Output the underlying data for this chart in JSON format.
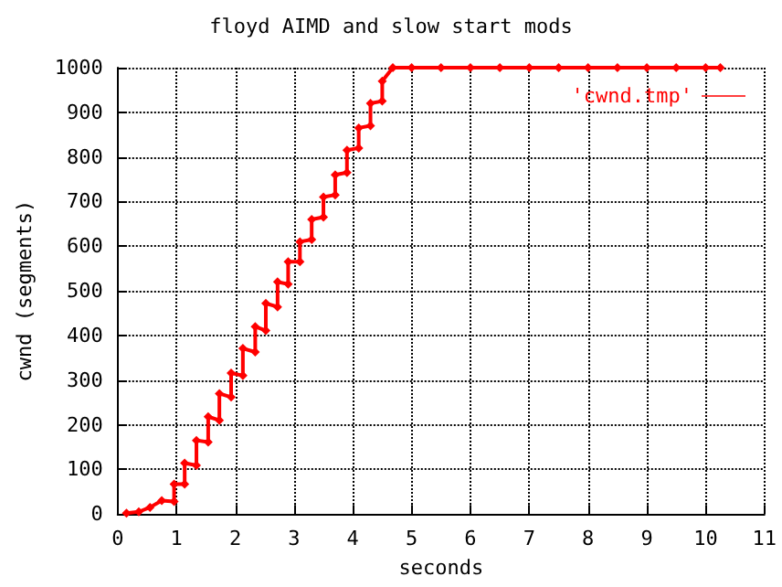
{
  "chart_data": {
    "type": "line",
    "title": "floyd AIMD and slow start mods",
    "xlabel": "seconds",
    "ylabel": "cwnd (segments)",
    "x": [
      0.15,
      0.36,
      0.55,
      0.75,
      0.96,
      0.96,
      1.14,
      1.14,
      1.34,
      1.34,
      1.54,
      1.54,
      1.73,
      1.73,
      1.93,
      1.93,
      2.13,
      2.13,
      2.34,
      2.34,
      2.52,
      2.52,
      2.72,
      2.72,
      2.9,
      2.9,
      3.1,
      3.1,
      3.3,
      3.3,
      3.5,
      3.5,
      3.7,
      3.7,
      3.9,
      3.9,
      4.1,
      4.1,
      4.3,
      4.3,
      4.5,
      4.5,
      4.68,
      5,
      5.5,
      6,
      6.5,
      7,
      7.5,
      8,
      8.5,
      9,
      9.5,
      10,
      10.25
    ],
    "series": [
      {
        "name": "'cwnd.tmp'",
        "color": "#ff0000",
        "values": [
          2,
          5,
          15,
          30,
          28,
          67,
          67,
          114,
          109,
          165,
          161,
          218,
          210,
          270,
          262,
          316,
          310,
          371,
          363,
          420,
          411,
          472,
          464,
          520,
          515,
          565,
          565,
          610,
          615,
          660,
          665,
          710,
          715,
          760,
          765,
          815,
          820,
          865,
          870,
          920,
          925,
          970,
          1000,
          1000,
          1000,
          1000,
          1000,
          1000,
          1000,
          1000,
          1000,
          1000,
          1000,
          1000,
          1000
        ]
      }
    ],
    "xlim": [
      0,
      11
    ],
    "xticks": [
      0,
      1,
      2,
      3,
      4,
      5,
      6,
      7,
      8,
      9,
      10,
      11
    ],
    "ylim": [
      0,
      1000
    ],
    "yticks": [
      0,
      100,
      200,
      300,
      400,
      500,
      600,
      700,
      800,
      900,
      1000
    ],
    "grid": true,
    "legend": "top right",
    "marker": "diamond",
    "line_style": "solid"
  }
}
